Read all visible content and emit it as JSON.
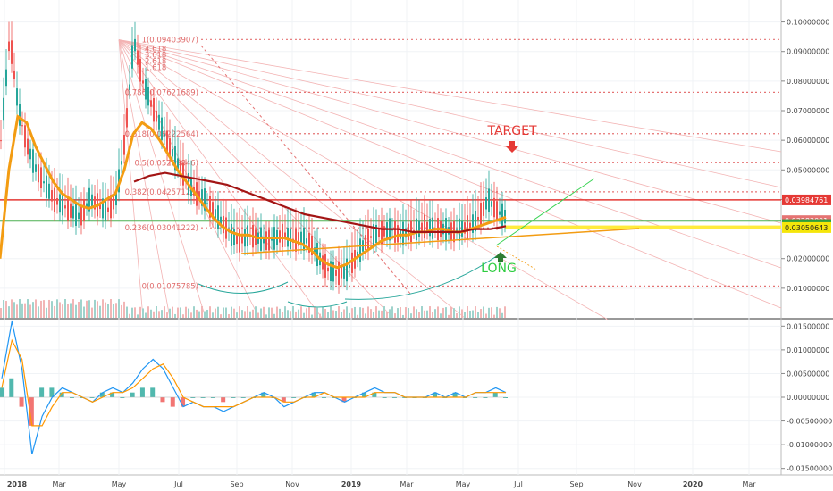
{
  "chart_data": [
    {
      "type": "line",
      "panel": "price",
      "ylim": [
        0.0,
        0.105
      ],
      "yticks": [
        "0.10000000",
        "0.09000000",
        "0.08000000",
        "0.07000000",
        "0.06000000",
        "0.05000000",
        "0.04000000",
        "0.03000000",
        "0.02000000",
        "0.01000000"
      ],
      "ytick_values": [
        0.1,
        0.09,
        0.08,
        0.07,
        0.06,
        0.05,
        0.04,
        0.03,
        0.02,
        0.01
      ],
      "xticks": [
        "2018",
        "Mar",
        "May",
        "Jul",
        "Sep",
        "Nov",
        "2019",
        "Mar",
        "May",
        "Jul",
        "Sep",
        "Nov",
        "2020",
        "Mar"
      ],
      "series": [
        {
          "kind": "price",
          "values": [
            0.06,
            0.095,
            0.07,
            0.058,
            0.05,
            0.045,
            0.04,
            0.038,
            0.036,
            0.034,
            0.04,
            0.038,
            0.036,
            0.04,
            0.06,
            0.094,
            0.08,
            0.072,
            0.065,
            0.058,
            0.052,
            0.046,
            0.042,
            0.04,
            0.036,
            0.032,
            0.028,
            0.026,
            0.028,
            0.027,
            0.026,
            0.027,
            0.028,
            0.026,
            0.027,
            0.025,
            0.02,
            0.016,
            0.015,
            0.016,
            0.02,
            0.025,
            0.028,
            0.029,
            0.03,
            0.028,
            0.029,
            0.03,
            0.031,
            0.03,
            0.03,
            0.029,
            0.03,
            0.031,
            0.034,
            0.04,
            0.036,
            0.034
          ]
        },
        {
          "kind": "ema-fast",
          "values": [
            0.02,
            0.05,
            0.068,
            0.066,
            0.058,
            0.052,
            0.046,
            0.042,
            0.04,
            0.038,
            0.037,
            0.038,
            0.04,
            0.042,
            0.05,
            0.062,
            0.066,
            0.064,
            0.06,
            0.055,
            0.05,
            0.046,
            0.042,
            0.038,
            0.034,
            0.031,
            0.029,
            0.028,
            0.028,
            0.027,
            0.027,
            0.027,
            0.027,
            0.026,
            0.025,
            0.023,
            0.02,
            0.018,
            0.017,
            0.018,
            0.02,
            0.022,
            0.024,
            0.026,
            0.027,
            0.028,
            0.028,
            0.029,
            0.029,
            0.03,
            0.03,
            0.029,
            0.029,
            0.03,
            0.031,
            0.032,
            0.033,
            0.034
          ]
        },
        {
          "kind": "ma-slow",
          "values": [
            0.046,
            0.048,
            0.049,
            0.048,
            0.047,
            0.046,
            0.045,
            0.043,
            0.041,
            0.039,
            0.037,
            0.035,
            0.034,
            0.033,
            0.032,
            0.031,
            0.03,
            0.03,
            0.029,
            0.029,
            0.029,
            0.029,
            0.03,
            0.03,
            0.031
          ]
        }
      ],
      "fib_levels": [
        {
          "ratio": "1",
          "value": 0.09403907,
          "label": "1(0.09403907)"
        },
        {
          "ratio": "0.786",
          "value": 0.07621689,
          "label": "0.786(0.07621689)"
        },
        {
          "ratio": "0.618",
          "value": 0.06222564,
          "label": "0.618(0.06222564)"
        },
        {
          "ratio": "0.5",
          "value": 0.05239846,
          "label": "0.5(0.05239846)"
        },
        {
          "ratio": "0.382",
          "value": 0.04257128,
          "label": "0.382(0.04257128)"
        },
        {
          "ratio": "0.236",
          "value": 0.03041222,
          "label": "0.236(0.03041222)"
        },
        {
          "ratio": "0",
          "value": 0.01075785,
          "label": "0(0.01075785)"
        }
      ],
      "fib_small_labels": [
        "4.618",
        "3.618",
        "2.618",
        "1.618"
      ],
      "hlines": [
        {
          "value": 0.03984761,
          "color": "#e53935"
        },
        {
          "value": 0.0328,
          "color": "#4caf50"
        },
        {
          "value": 0.0307,
          "color": "#ffeb3b"
        }
      ],
      "price_badges": [
        {
          "value": 0.03984761,
          "label": "0.03984761",
          "bg": "#e53935",
          "fg": "#ffffff"
        },
        {
          "value": 0.03283091,
          "label": "0.03283091",
          "bg": "#e57373",
          "fg": "#ffffff"
        },
        {
          "value": 0.0315,
          "label": "0.03153354",
          "bg": "#2e9e3e",
          "fg": "#2e9e3e"
        },
        {
          "value": 0.03050643,
          "label": "0.03050643",
          "bg": "#f5e60a",
          "fg": "#222222"
        }
      ],
      "annotations": [
        {
          "text": "TARGET",
          "color": "#e53935"
        },
        {
          "text": "LONG",
          "color": "#2ecc40"
        }
      ]
    },
    {
      "type": "line",
      "panel": "macd",
      "ylim": [
        -0.016,
        0.016
      ],
      "yticks": [
        "0.01500000",
        "0.01000000",
        "0.00500000",
        "0.00000000",
        "-0.00500000",
        "-0.01000000",
        "-0.01500000"
      ],
      "ytick_values": [
        0.015,
        0.01,
        0.005,
        0.0,
        -0.005,
        -0.01,
        -0.015
      ],
      "series": [
        {
          "kind": "macd",
          "values": [
            0.004,
            0.016,
            0.006,
            -0.012,
            -0.004,
            0.0,
            0.002,
            0.001,
            0.0,
            -0.001,
            0.001,
            0.002,
            0.001,
            0.003,
            0.006,
            0.008,
            0.006,
            0.002,
            -0.002,
            -0.001,
            -0.002,
            -0.002,
            -0.003,
            -0.002,
            -0.001,
            0.0,
            0.001,
            0.0,
            -0.002,
            -0.001,
            0.0,
            0.001,
            0.001,
            0.0,
            -0.001,
            0.0,
            0.001,
            0.002,
            0.001,
            0.001,
            0.0,
            0.0,
            0.0,
            0.001,
            0.0,
            0.001,
            0.0,
            0.001,
            0.001,
            0.002,
            0.001
          ]
        },
        {
          "kind": "signal",
          "values": [
            0.002,
            0.012,
            0.008,
            -0.006,
            -0.006,
            -0.002,
            0.001,
            0.001,
            0.0,
            -0.001,
            0.0,
            0.001,
            0.001,
            0.002,
            0.004,
            0.006,
            0.007,
            0.004,
            0.0,
            -0.001,
            -0.002,
            -0.002,
            -0.002,
            -0.002,
            -0.001,
            0.0,
            0.0,
            0.0,
            -0.001,
            -0.001,
            0.0,
            0.0,
            0.001,
            0.0,
            0.0,
            0.0,
            0.0,
            0.001,
            0.001,
            0.001,
            0.0,
            0.0,
            0.0,
            0.0,
            0.0,
            0.0,
            0.0,
            0.001,
            0.001,
            0.001,
            0.001
          ]
        }
      ]
    }
  ]
}
